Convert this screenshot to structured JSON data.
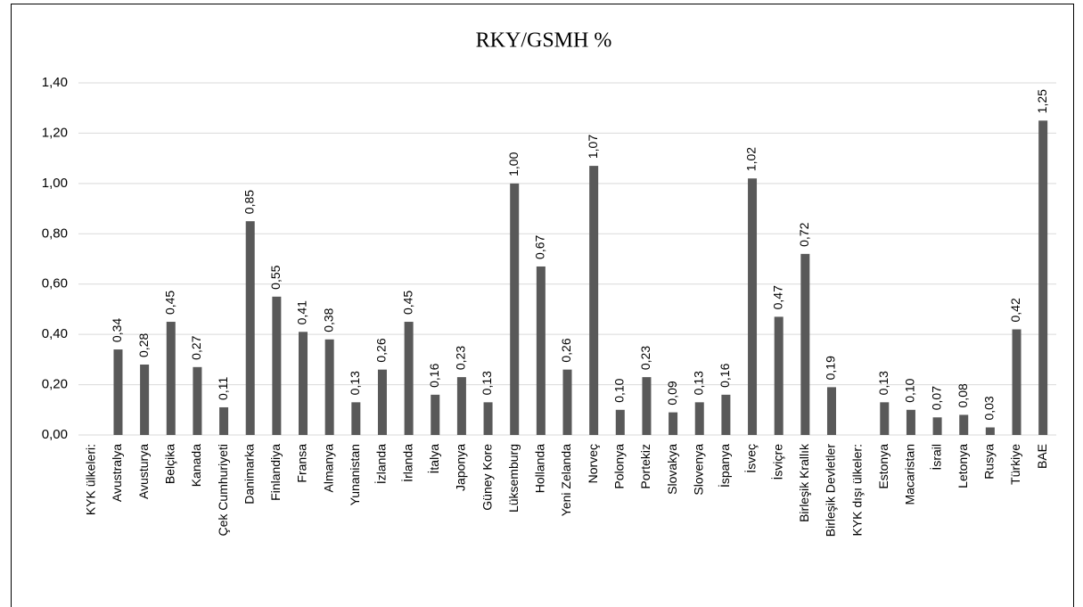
{
  "chart_data": {
    "type": "bar",
    "title": "RKY/GSMH %",
    "categories": [
      "KYK ülkeleri:",
      "Avustralya",
      "Avusturya",
      "Belçika",
      "Kanada",
      "Çek Cumhuriyeti",
      "Danimarka",
      "Finlandiya",
      "Fransa",
      "Almanya",
      "Yunanistan",
      "İzlanda",
      "İrlanda",
      "İtalya",
      "Japonya",
      "Güney Kore",
      "Lüksemburg",
      "Hollanda",
      "Yeni Zelanda",
      "Norveç",
      "Polonya",
      "Portekiz",
      "Slovakya",
      "Slovenya",
      "İspanya",
      "İsveç",
      "İsviçre",
      "Birleşik Krallık",
      "Birleşik Devletler",
      "KYK dışı ülkeler:",
      "Estonya",
      "Macaristan",
      "İsrail",
      "Letonya",
      "Rusya",
      "Türkiye",
      "BAE"
    ],
    "values": [
      null,
      0.34,
      0.28,
      0.45,
      0.27,
      0.11,
      0.85,
      0.55,
      0.41,
      0.38,
      0.13,
      0.26,
      0.45,
      0.16,
      0.23,
      0.13,
      1.0,
      0.67,
      0.26,
      1.07,
      0.1,
      0.23,
      0.09,
      0.13,
      0.16,
      1.02,
      0.47,
      0.72,
      0.19,
      null,
      0.13,
      0.1,
      0.07,
      0.08,
      0.03,
      0.42,
      1.25
    ],
    "value_labels": [
      null,
      "0,34",
      "0,28",
      "0,45",
      "0,27",
      "0,11",
      "0,85",
      "0,55",
      "0,41",
      "0,38",
      "0,13",
      "0,26",
      "0,45",
      "0,16",
      "0,23",
      "0,13",
      "1,00",
      "0,67",
      "0,26",
      "1,07",
      "0,10",
      "0,23",
      "0,09",
      "0,13",
      "0,16",
      "1,02",
      "0,47",
      "0,72",
      "0,19",
      null,
      "0,13",
      "0,10",
      "0,07",
      "0,08",
      "0,03",
      "0,42",
      "1,25"
    ],
    "color": "#595959",
    "ylim": [
      0,
      1.4
    ],
    "yticks": [
      {
        "value": 0,
        "label": "0,00"
      },
      {
        "value": 0.2,
        "label": "0,20"
      },
      {
        "value": 0.4,
        "label": "0,40"
      },
      {
        "value": 0.6,
        "label": "0,60"
      },
      {
        "value": 0.8,
        "label": "0,80"
      },
      {
        "value": 1.0,
        "label": "1,00"
      },
      {
        "value": 1.2,
        "label": "1,20"
      },
      {
        "value": 1.4,
        "label": "1,40"
      }
    ],
    "grid": true
  }
}
